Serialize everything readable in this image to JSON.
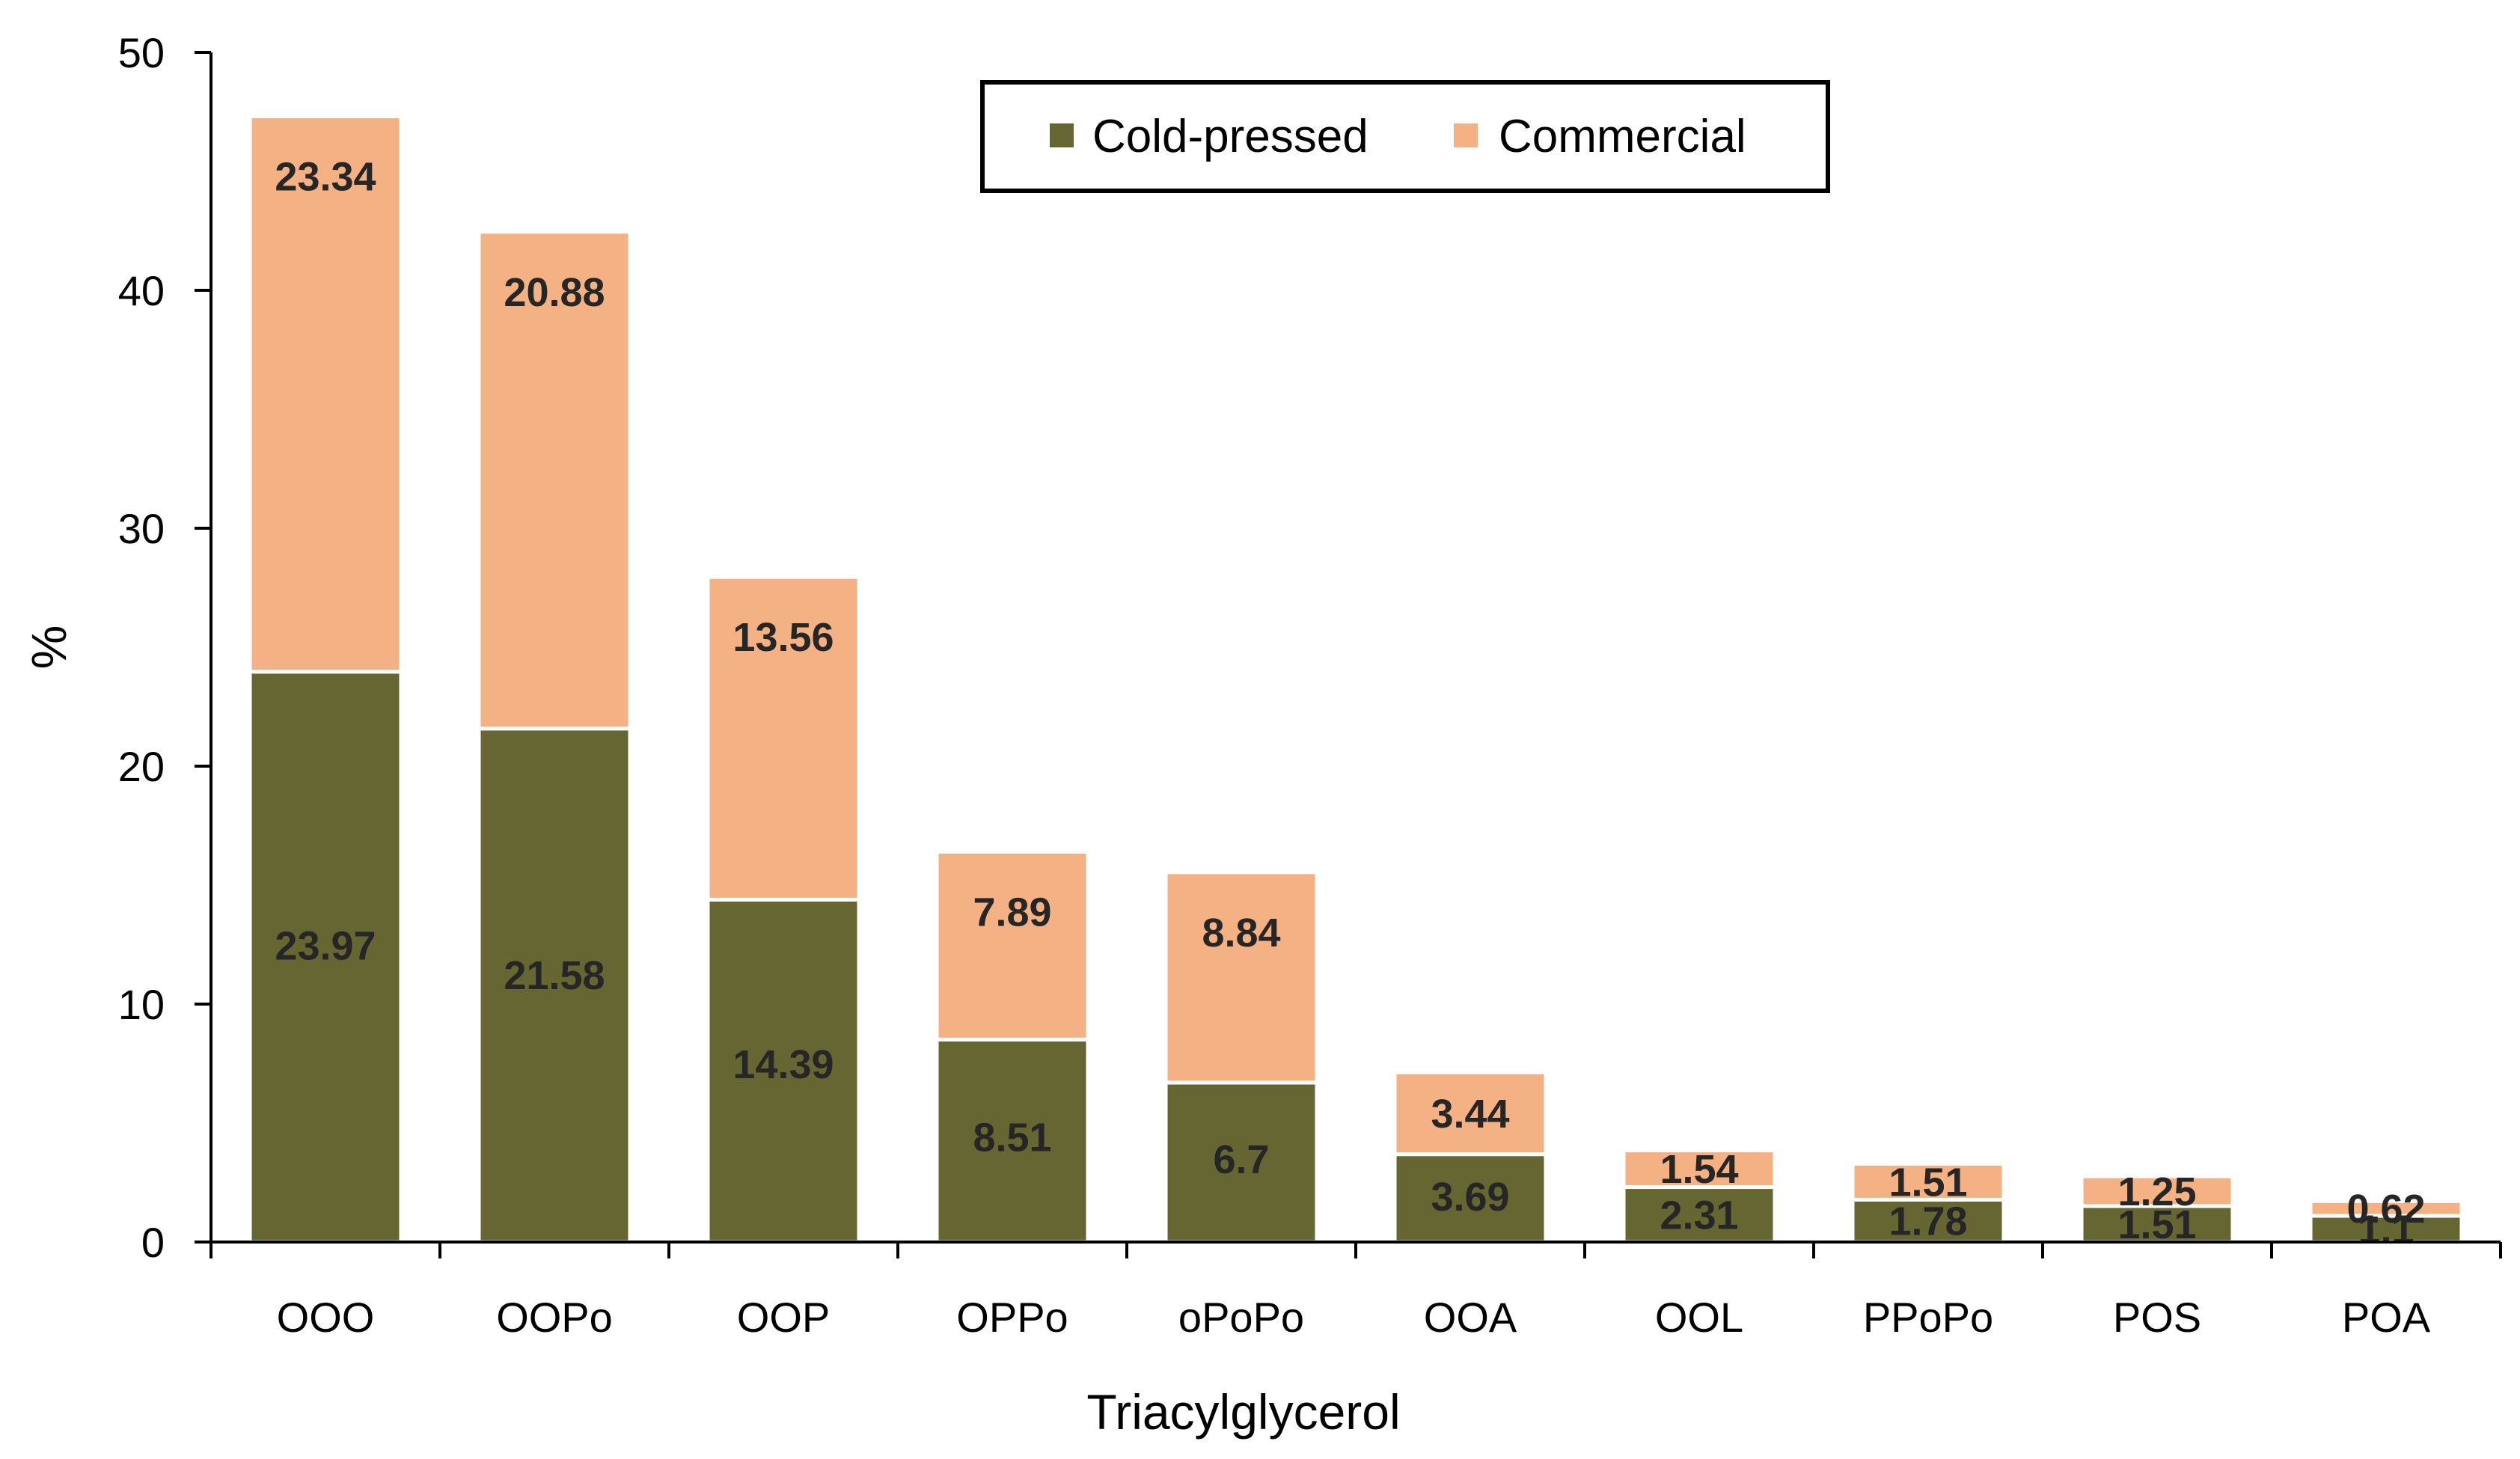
{
  "chart_data": {
    "type": "bar",
    "stacked": true,
    "title": "",
    "xlabel": "Triacylglycerol",
    "ylabel": "%",
    "ylim": [
      0,
      50
    ],
    "yticks": [
      0,
      10,
      20,
      30,
      40,
      50
    ],
    "grid": false,
    "legend_position": "top-center",
    "categories": [
      "OOO",
      "OOPo",
      "OOP",
      "OPPo",
      "oPoPo",
      "OOA",
      "OOL",
      "PPoPo",
      "POS",
      "POA"
    ],
    "series": [
      {
        "name": "Cold-pressed",
        "color": "#666633",
        "values": [
          23.97,
          21.58,
          14.39,
          8.51,
          6.7,
          3.69,
          2.31,
          1.78,
          1.51,
          1.1
        ],
        "labels": [
          "23.97",
          "21.58",
          "14.39",
          "8.51",
          "6.7",
          "3.69",
          "2.31",
          "1.78",
          "1.51",
          "1.1"
        ]
      },
      {
        "name": "Commercial",
        "color": "#F4B183",
        "values": [
          23.34,
          20.88,
          13.56,
          7.89,
          8.84,
          3.44,
          1.54,
          1.51,
          1.25,
          0.62
        ],
        "labels": [
          "23.34",
          "20.88",
          "13.56",
          "7.89",
          "8.84",
          "3.44",
          "1.54",
          "1.51",
          "1.25",
          "0.62"
        ]
      }
    ]
  }
}
